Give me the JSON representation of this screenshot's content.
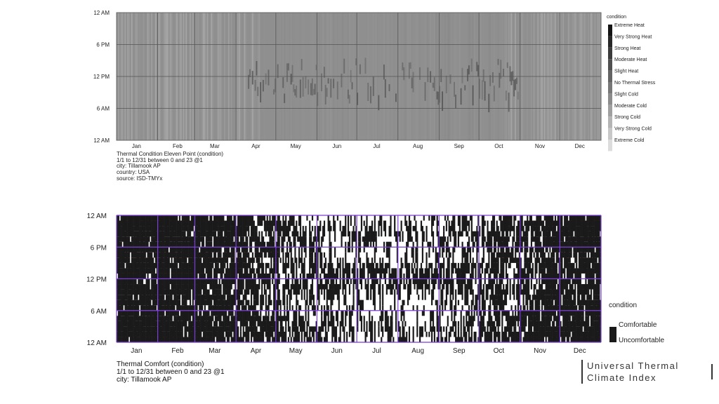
{
  "chart_data": [
    {
      "type": "heatmap",
      "y_ticks": [
        "12 AM",
        "6 PM",
        "12 PM",
        "6 AM",
        "12 AM"
      ],
      "x_ticks": [
        "Jan",
        "Feb",
        "Mar",
        "Apr",
        "May",
        "Jun",
        "Jul",
        "Aug",
        "Sep",
        "Oct",
        "Nov",
        "Dec"
      ],
      "legend": {
        "title": "condition",
        "levels": [
          "Extreme Heat",
          "Very Strong Heat",
          "Strong Heat",
          "Moderate Heat",
          "Slight Heat",
          "No Thermal Stress",
          "Slight Cold",
          "Moderate Cold",
          "Strong Cold",
          "Very Strong Cold",
          "Extreme Cold"
        ],
        "placement": "right"
      },
      "info": [
        "Thermal Condition Eleven Point (condition)",
        "1/1 to 12/31 between 0 and 23 @1",
        "city: Tillamook AP",
        "country: USA",
        "source: ISD-TMYx"
      ],
      "grid": true,
      "dominant_condition": "No Thermal Stress",
      "colors": {
        "frame": "#8e8e8e",
        "grid": "#555555"
      }
    },
    {
      "type": "heatmap",
      "y_ticks": [
        "12 AM",
        "6 PM",
        "12 PM",
        "6 AM",
        "12 AM"
      ],
      "x_ticks": [
        "Jan",
        "Feb",
        "Mar",
        "Apr",
        "May",
        "Jun",
        "Jul",
        "Aug",
        "Sep",
        "Oct",
        "Nov",
        "Dec"
      ],
      "legend": {
        "title": "condition",
        "levels": [
          "Comfortable",
          "Uncomfortable"
        ],
        "placement": "right"
      },
      "info": [
        "Thermal Comfort (condition)",
        "1/1 to 12/31 between 0 and 23 @1",
        "city: Tillamook AP"
      ],
      "grid": true,
      "colors": {
        "comfortable": "#ffffff",
        "uncomfortable": "#1a1a1a",
        "grid": "#7a3fd6"
      }
    }
  ],
  "side_title": {
    "line1": "Universal Thermal",
    "line2": "Climate Index"
  }
}
